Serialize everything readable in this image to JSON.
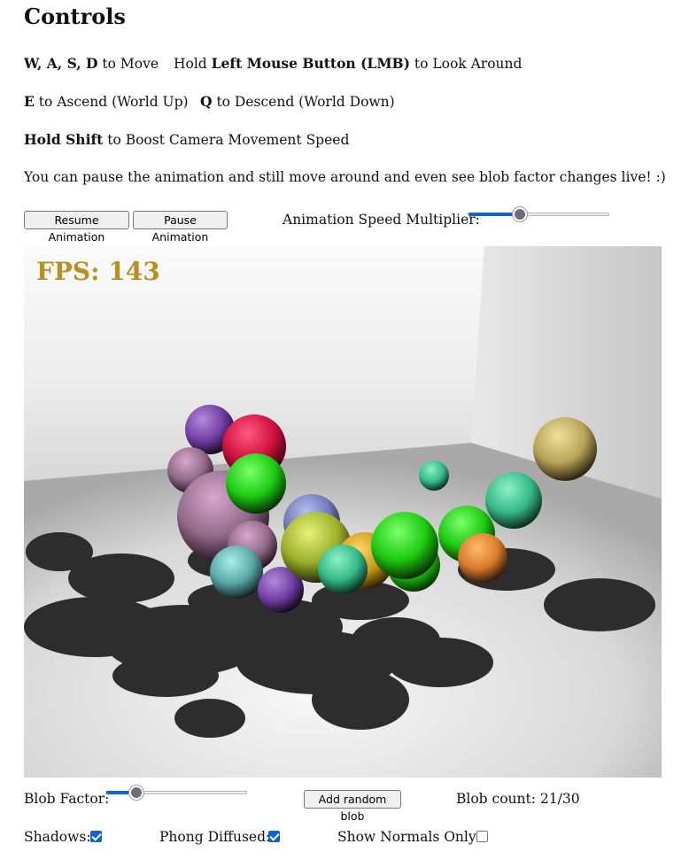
{
  "heading": "Controls",
  "controls": {
    "move_keys": "W, A, S, D",
    "move_text": " to Move",
    "look_prefix": "Hold ",
    "look_button": "Left Mouse Button (LMB)",
    "look_text": " to Look Around",
    "ascend_key": "E",
    "ascend_text": " to Ascend (World Up)",
    "descend_key": "Q",
    "descend_text": " to Descend (World Down)",
    "boost_key": "Hold Shift",
    "boost_text": " to Boost Camera Movement Speed",
    "pause_note": "You can pause the animation and still move around and even see blob factor changes live! :)"
  },
  "animation": {
    "resume_label": "Resume Animation",
    "pause_label": "Pause Animation",
    "speed_label": "Animation Speed Multiplier:",
    "speed_fraction": 0.35
  },
  "viewport": {
    "fps_text": "FPS: 143",
    "fps_color": "#b8901c"
  },
  "blob": {
    "factor_label": "Blob Factor:",
    "factor_fraction": 0.18,
    "add_label": "Add random blob",
    "count_text": "Blob count: 21/30"
  },
  "options": {
    "shadows_label": "Shadows:",
    "shadows_checked": true,
    "phong_label": "Phong Diffused:",
    "phong_checked": true,
    "normals_label": "Show Normals Only:",
    "normals_checked": false
  },
  "colors": {
    "accent": "#0b63d6"
  }
}
